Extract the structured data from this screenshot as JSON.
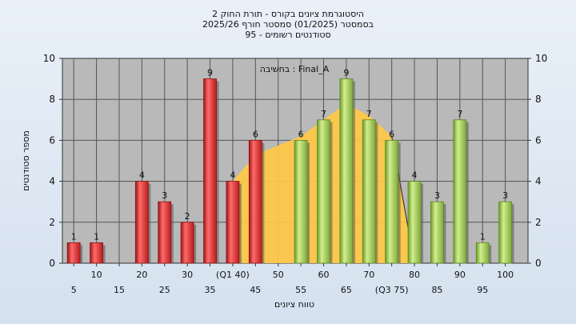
{
  "chart_data": {
    "type": "bar",
    "title_lines": [
      "היסטוגרמת ציונים בקורס - תורת החוק 2",
      "בסמסטר  (01/2025)  סמסטר חורף 2025/26",
      "סטודנטים רשומים - 95"
    ],
    "legend_label": "בחשיבה : Final_A",
    "xlabel": "טווח ציונים",
    "ylabel": "מספר סטודנטים",
    "ylim": [
      0,
      10
    ],
    "yticks": [
      0,
      2,
      4,
      6,
      8,
      10
    ],
    "grid": true,
    "categories": [
      5,
      10,
      15,
      20,
      25,
      30,
      35,
      40,
      45,
      50,
      55,
      60,
      65,
      70,
      75,
      80,
      85,
      90,
      95,
      100
    ],
    "tick_labels": [
      {
        "x": 5,
        "text": "5"
      },
      {
        "x": 10,
        "text": "10"
      },
      {
        "x": 15,
        "text": "15"
      },
      {
        "x": 20,
        "text": "20"
      },
      {
        "x": 25,
        "text": "25"
      },
      {
        "x": 30,
        "text": "30"
      },
      {
        "x": 35,
        "text": "35"
      },
      {
        "x": 40,
        "text": "(Q1 40)"
      },
      {
        "x": 45,
        "text": "45"
      },
      {
        "x": 50,
        "text": "50"
      },
      {
        "x": 55,
        "text": "55"
      },
      {
        "x": 60,
        "text": "60"
      },
      {
        "x": 65,
        "text": "65"
      },
      {
        "x": 70,
        "text": "70"
      },
      {
        "x": 75,
        "text": "(Q3 75)"
      },
      {
        "x": 80,
        "text": "80"
      },
      {
        "x": 85,
        "text": "85"
      },
      {
        "x": 90,
        "text": "90"
      },
      {
        "x": 95,
        "text": "95"
      },
      {
        "x": 100,
        "text": "100"
      }
    ],
    "bars": [
      {
        "x": 5,
        "value": 1,
        "group": "low"
      },
      {
        "x": 10,
        "value": 1,
        "group": "low"
      },
      {
        "x": 20,
        "value": 4,
        "group": "low"
      },
      {
        "x": 25,
        "value": 3,
        "group": "low"
      },
      {
        "x": 30,
        "value": 2,
        "group": "low"
      },
      {
        "x": 35,
        "value": 9,
        "group": "low"
      },
      {
        "x": 40,
        "value": 4,
        "group": "low"
      },
      {
        "x": 45,
        "value": 6,
        "group": "low"
      },
      {
        "x": 55,
        "value": 6,
        "group": "high"
      },
      {
        "x": 60,
        "value": 7,
        "group": "high"
      },
      {
        "x": 65,
        "value": 9,
        "group": "high"
      },
      {
        "x": 70,
        "value": 7,
        "group": "high"
      },
      {
        "x": 75,
        "value": 6,
        "group": "high"
      },
      {
        "x": 80,
        "value": 4,
        "group": "high"
      },
      {
        "x": 85,
        "value": 3,
        "group": "high"
      },
      {
        "x": 90,
        "value": 7,
        "group": "high"
      },
      {
        "x": 95,
        "value": 1,
        "group": "high"
      },
      {
        "x": 100,
        "value": 3,
        "group": "high"
      }
    ],
    "area": [
      {
        "x": 40,
        "y": 4
      },
      {
        "x": 45,
        "y": 5.3
      },
      {
        "x": 55,
        "y": 6.2
      },
      {
        "x": 60,
        "y": 7.0
      },
      {
        "x": 65,
        "y": 7.8
      },
      {
        "x": 70,
        "y": 7.2
      },
      {
        "x": 75,
        "y": 6.2
      },
      {
        "x": 80,
        "y": 0
      }
    ],
    "colors": {
      "low": "#e23a3a",
      "low_dark": "#8e1212",
      "high": "#a6cf5c",
      "high_dark": "#5d8a22",
      "area": "#ffc845",
      "plot_bg": "#b9b9b9",
      "grid": "#555555"
    }
  }
}
